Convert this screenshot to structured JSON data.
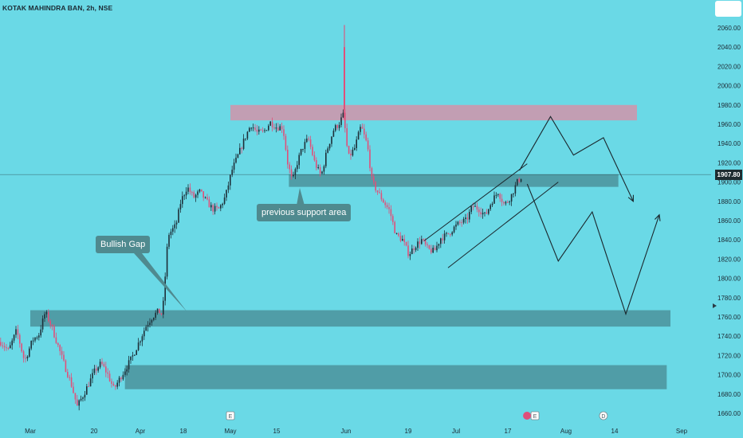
{
  "header": {
    "symbol_title": "KOTAK MAHINDRA BAN, 2h, NSE"
  },
  "chart_data": {
    "type": "candlestick",
    "symbol": "KOTAK MAHINDRA BAN",
    "interval": "2h",
    "exchange": "NSE",
    "last_price": 1907.8,
    "last_price_label": "1907.80",
    "ylim": [
      1652,
      2072
    ],
    "y_ticks": [
      1660,
      1680,
      1700,
      1720,
      1740,
      1760,
      1780,
      1800,
      1820,
      1840,
      1860,
      1880,
      1900,
      1920,
      1940,
      1960,
      1980,
      2000,
      2020,
      2040,
      2060
    ],
    "y_tick_labels": [
      "1660.00",
      "1680.00",
      "1700.00",
      "1720.00",
      "1740.00",
      "1760.00",
      "1780.00",
      "1800.00",
      "1820.00",
      "1840.00",
      "1860.00",
      "1880.00",
      "1900.00",
      "1920.00",
      "1940.00",
      "1960.00",
      "1980.00",
      "2000.00",
      "2020.00",
      "2040.00",
      "2060.00"
    ],
    "x_labels": [
      "Mar",
      "20",
      "Apr",
      "18",
      "May",
      "15",
      "Jun",
      "19",
      "Jul",
      "17",
      "Aug",
      "14",
      "Sep"
    ],
    "zones": [
      {
        "name": "resistance-zone",
        "from": "May 1",
        "to": "Aug 20",
        "low": 1964,
        "high": 1980,
        "color": "#c79bb0"
      },
      {
        "name": "previous-support-zone",
        "from": "May 18",
        "to": "Aug 15",
        "low": 1895,
        "high": 1908,
        "color": "#4f9aa3"
      },
      {
        "name": "gap-zone",
        "from": "Mar 1",
        "to": "Aug 29",
        "low": 1750,
        "high": 1767,
        "color": "#4f9aa3"
      },
      {
        "name": "demand-zone",
        "from": "Mar 28",
        "to": "Aug 28",
        "low": 1685,
        "high": 1710,
        "color": "#4f9aa3"
      }
    ],
    "annotations": [
      "Bullish Gap",
      "previous support area"
    ],
    "event_markers": [
      "E",
      "E",
      "D"
    ],
    "candle_path": [
      [
        0,
        1734
      ],
      [
        10,
        1725
      ],
      [
        20,
        1746
      ],
      [
        30,
        1714
      ],
      [
        40,
        1736
      ],
      [
        48,
        1742
      ],
      [
        56,
        1765
      ],
      [
        63,
        1752
      ],
      [
        72,
        1730
      ],
      [
        80,
        1710
      ],
      [
        88,
        1692
      ],
      [
        96,
        1667
      ],
      [
        103,
        1678
      ],
      [
        110,
        1690
      ],
      [
        118,
        1704
      ],
      [
        126,
        1712
      ],
      [
        134,
        1701
      ],
      [
        142,
        1685
      ],
      [
        150,
        1697
      ],
      [
        158,
        1708
      ],
      [
        166,
        1720
      ],
      [
        174,
        1735
      ],
      [
        182,
        1750
      ],
      [
        190,
        1760
      ],
      [
        198,
        1766
      ],
      [
        203,
        1762
      ],
      [
        210,
        1845
      ],
      [
        220,
        1855
      ],
      [
        226,
        1880
      ],
      [
        234,
        1895
      ],
      [
        242,
        1884
      ],
      [
        250,
        1890
      ],
      [
        258,
        1880
      ],
      [
        266,
        1872
      ],
      [
        274,
        1872
      ],
      [
        282,
        1885
      ],
      [
        290,
        1912
      ],
      [
        298,
        1928
      ],
      [
        306,
        1945
      ],
      [
        314,
        1960
      ],
      [
        322,
        1951
      ],
      [
        330,
        1952
      ],
      [
        338,
        1962
      ],
      [
        346,
        1957
      ],
      [
        354,
        1957
      ],
      [
        360,
        1920
      ],
      [
        366,
        1900
      ],
      [
        372,
        1920
      ],
      [
        378,
        1935
      ],
      [
        386,
        1945
      ],
      [
        394,
        1920
      ],
      [
        402,
        1906
      ],
      [
        410,
        1935
      ],
      [
        418,
        1955
      ],
      [
        424,
        1960
      ],
      [
        430,
        1970
      ],
      [
        436,
        1925
      ],
      [
        444,
        1935
      ],
      [
        452,
        1958
      ],
      [
        460,
        1938
      ],
      [
        466,
        1900
      ],
      [
        472,
        1891
      ],
      [
        480,
        1880
      ],
      [
        488,
        1870
      ],
      [
        496,
        1845
      ],
      [
        504,
        1840
      ],
      [
        512,
        1825
      ],
      [
        520,
        1834
      ],
      [
        528,
        1840
      ],
      [
        536,
        1830
      ],
      [
        544,
        1828
      ],
      [
        552,
        1842
      ],
      [
        560,
        1845
      ],
      [
        568,
        1852
      ],
      [
        576,
        1858
      ],
      [
        584,
        1860
      ],
      [
        592,
        1875
      ],
      [
        600,
        1872
      ],
      [
        608,
        1865
      ],
      [
        616,
        1880
      ],
      [
        624,
        1890
      ],
      [
        632,
        1876
      ],
      [
        640,
        1885
      ],
      [
        648,
        1900
      ],
      [
        655,
        1907.8
      ]
    ],
    "channel_lines": [
      {
        "from": [
          "Jun 23",
          1839
        ],
        "to": [
          "Jul 22",
          1919
        ]
      },
      {
        "from": [
          "Jun 29",
          1811
        ],
        "to": [
          "Jul 30",
          1900
        ]
      }
    ],
    "projection_paths": [
      [
        [
          "Jul 20",
          1912
        ],
        [
          "Jul 28",
          1968
        ],
        [
          "Aug 3",
          1928
        ],
        [
          "Aug 11",
          1946
        ],
        [
          "Aug 19",
          1880
        ]
      ],
      [
        [
          "Jul 22",
          1898
        ],
        [
          "Jul 30",
          1818
        ],
        [
          "Aug 8",
          1869
        ],
        [
          "Aug 17",
          1763
        ],
        [
          "Aug 26",
          1866
        ]
      ]
    ],
    "colors": {
      "background": "#6ad9e6",
      "candle_up": "#1d2f38",
      "candle_down": "#e0507a",
      "price_line": "#1e2c30",
      "text": "#1c2a34"
    }
  }
}
